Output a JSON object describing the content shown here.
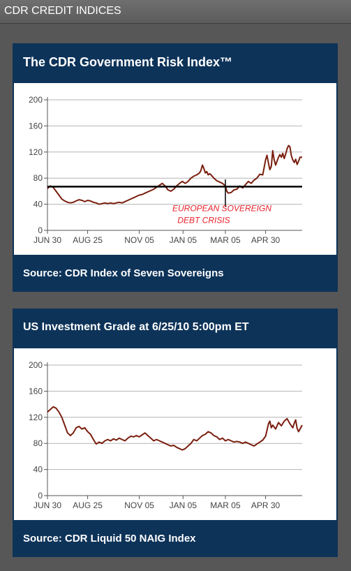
{
  "header": {
    "title": "CDR CREDIT INDICES"
  },
  "cards": [
    {
      "title": "The CDR Government Risk Index™",
      "source": "Source: CDR Index of Seven Sovereigns"
    },
    {
      "title": "US Investment Grade at 6/25/10 5:00pm ET",
      "source": "Source: CDR Liquid 50 NAIG Index"
    }
  ],
  "colors": {
    "panel_bg": "#575757",
    "card_bg": "#0d3359",
    "series_line": "#7a1e0e",
    "reference_line": "#000000",
    "annotation_text": "#e8202a"
  },
  "chart_data": [
    {
      "type": "line",
      "title": "",
      "xlabel": "",
      "ylabel": "",
      "ylim": [
        0,
        200
      ],
      "yticks": [
        0,
        40,
        80,
        120,
        160,
        200
      ],
      "xtick_labels": [
        "JUN 30",
        "AUG 25",
        "NOV 05",
        "JAN 05",
        "MAR 05",
        "APR 30"
      ],
      "xtick_positions": [
        0,
        56,
        128,
        189,
        248,
        304
      ],
      "xlim": [
        0,
        355
      ],
      "grid": true,
      "reference_line": {
        "y": 67
      },
      "annotation": {
        "lines": [
          "EUROPEAN SOVEREIGN",
          "DEBT CRISIS"
        ],
        "x": 248,
        "y_top": 78,
        "y_bottom": 36
      },
      "series": [
        {
          "x": [
            0,
            4,
            8,
            12,
            16,
            20,
            24,
            28,
            32,
            36,
            40,
            44,
            48,
            52,
            56,
            60,
            64,
            68,
            72,
            76,
            80,
            84,
            88,
            92,
            96,
            100,
            104,
            108,
            112,
            116,
            120,
            124,
            128,
            132,
            136,
            140,
            144,
            148,
            152,
            156,
            160,
            164,
            168,
            172,
            176,
            180,
            184,
            188,
            192,
            196,
            200,
            204,
            208,
            212,
            214,
            216,
            218,
            220,
            222,
            224,
            226,
            228,
            232,
            236,
            240,
            244,
            248,
            250,
            252,
            256,
            260,
            264,
            268,
            272,
            276,
            280,
            284,
            288,
            292,
            296,
            300,
            302,
            304,
            306,
            308,
            310,
            312,
            314,
            316,
            318,
            320,
            322,
            324,
            326,
            328,
            330,
            332,
            334,
            336,
            338,
            340,
            342,
            344,
            346,
            348,
            350,
            352,
            355
          ],
          "values": [
            64,
            68,
            66,
            60,
            54,
            48,
            45,
            43,
            42,
            43,
            45,
            47,
            46,
            44,
            46,
            45,
            43,
            42,
            40,
            41,
            42,
            41,
            42,
            41,
            42,
            43,
            42,
            44,
            46,
            48,
            50,
            52,
            54,
            55,
            57,
            59,
            61,
            63,
            66,
            69,
            72,
            68,
            62,
            60,
            63,
            68,
            72,
            75,
            72,
            75,
            80,
            83,
            85,
            88,
            92,
            100,
            95,
            88,
            90,
            85,
            87,
            85,
            80,
            76,
            74,
            72,
            68,
            60,
            57,
            58,
            62,
            63,
            68,
            65,
            70,
            75,
            72,
            77,
            80,
            86,
            85,
            96,
            108,
            115,
            103,
            93,
            98,
            122,
            108,
            100,
            106,
            112,
            116,
            112,
            118,
            110,
            117,
            125,
            130,
            128,
            114,
            108,
            104,
            109,
            101,
            106,
            112,
            112
          ]
        }
      ]
    },
    {
      "type": "line",
      "title": "",
      "xlabel": "",
      "ylabel": "",
      "ylim": [
        0,
        200
      ],
      "yticks": [
        0,
        40,
        80,
        120,
        160,
        200
      ],
      "xtick_labels": [
        "JUN 30",
        "AUG 25",
        "NOV 05",
        "JAN 05",
        "MAR 05",
        "APR 30"
      ],
      "xtick_positions": [
        0,
        56,
        128,
        189,
        248,
        304
      ],
      "xlim": [
        0,
        355
      ],
      "grid": true,
      "series": [
        {
          "x": [
            0,
            4,
            8,
            12,
            16,
            20,
            24,
            28,
            32,
            36,
            40,
            44,
            48,
            52,
            56,
            60,
            64,
            68,
            72,
            76,
            80,
            84,
            88,
            92,
            96,
            100,
            104,
            108,
            112,
            116,
            120,
            124,
            128,
            132,
            136,
            140,
            144,
            148,
            152,
            156,
            160,
            164,
            168,
            172,
            176,
            180,
            184,
            188,
            192,
            196,
            200,
            204,
            208,
            212,
            216,
            220,
            224,
            228,
            232,
            236,
            240,
            244,
            248,
            252,
            256,
            260,
            264,
            268,
            272,
            276,
            280,
            284,
            288,
            292,
            296,
            300,
            304,
            306,
            308,
            310,
            312,
            314,
            318,
            322,
            326,
            330,
            334,
            338,
            342,
            344,
            346,
            348,
            350,
            352,
            355
          ],
          "values": [
            128,
            132,
            136,
            134,
            128,
            120,
            108,
            96,
            92,
            96,
            104,
            106,
            102,
            104,
            98,
            94,
            86,
            79,
            82,
            80,
            84,
            86,
            84,
            87,
            85,
            88,
            86,
            84,
            88,
            91,
            90,
            92,
            90,
            93,
            96,
            92,
            88,
            84,
            86,
            84,
            82,
            80,
            78,
            76,
            77,
            74,
            72,
            70,
            72,
            76,
            80,
            86,
            84,
            88,
            92,
            94,
            98,
            96,
            92,
            90,
            86,
            88,
            84,
            86,
            84,
            82,
            83,
            82,
            80,
            82,
            80,
            78,
            76,
            79,
            82,
            85,
            91,
            100,
            110,
            114,
            104,
            108,
            102,
            112,
            107,
            114,
            118,
            110,
            104,
            111,
            116,
            103,
            98,
            102,
            108
          ]
        }
      ]
    }
  ]
}
